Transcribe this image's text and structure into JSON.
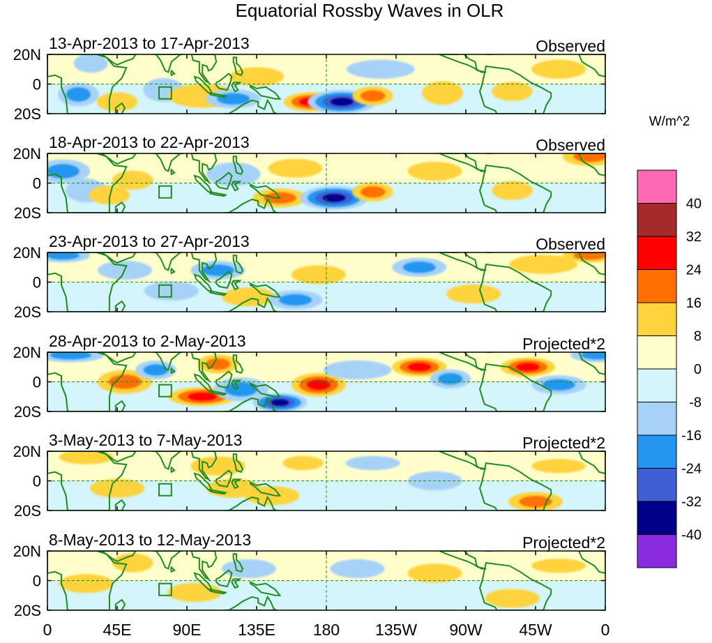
{
  "chart_data": {
    "type": "heatmap",
    "title": "Equatorial Rossby Waves in OLR",
    "units": "W/m^2",
    "x_ticks": [
      "0",
      "45E",
      "90E",
      "135E",
      "180",
      "135W",
      "90W",
      "45W",
      "0"
    ],
    "y_ticks": [
      "20N",
      "0",
      "20S"
    ],
    "colorbar": {
      "levels": [
        "40",
        "32",
        "24",
        "16",
        "8",
        "0",
        "-8",
        "-16",
        "-24",
        "-32",
        "-40"
      ],
      "colors": [
        "#ff69b4",
        "#a52a2a",
        "#ff0000",
        "#ff7000",
        "#ffd33d",
        "#ffffcc",
        "#d4f5fb",
        "#a7d2f8",
        "#2496f0",
        "#3f5fd5",
        "#00008b",
        "#8a2be2"
      ]
    },
    "land_color": "#1e8b1e",
    "panels": [
      {
        "period": "13-Apr-2013 to 17-Apr-2013",
        "label": "Observed",
        "blobs": [
          [
            20,
            -7,
            6,
            5,
            -16
          ],
          [
            28,
            14,
            5,
            4,
            -8
          ],
          [
            45,
            -12,
            6,
            4,
            12
          ],
          [
            75,
            -4,
            6,
            5,
            -8
          ],
          [
            100,
            -8,
            10,
            5,
            12
          ],
          [
            135,
            5,
            8,
            4,
            8
          ],
          [
            170,
            -12,
            8,
            4,
            24
          ],
          [
            190,
            -12,
            10,
            5,
            -36
          ],
          [
            210,
            -8,
            6,
            4,
            16
          ],
          [
            255,
            -6,
            6,
            5,
            8
          ],
          [
            300,
            -5,
            6,
            4,
            8
          ],
          [
            330,
            10,
            8,
            4,
            8
          ],
          [
            120,
            -10,
            8,
            4,
            -16
          ],
          [
            215,
            10,
            10,
            4,
            -8
          ]
        ]
      },
      {
        "period": "18-Apr-2013 to 22-Apr-2013",
        "label": "Observed",
        "blobs": [
          [
            10,
            8,
            8,
            5,
            -16
          ],
          [
            25,
            -5,
            6,
            5,
            -8
          ],
          [
            40,
            -8,
            6,
            4,
            12
          ],
          [
            55,
            2,
            6,
            4,
            8
          ],
          [
            120,
            6,
            8,
            5,
            -8
          ],
          [
            150,
            -10,
            8,
            4,
            16
          ],
          [
            185,
            -10,
            10,
            5,
            -32
          ],
          [
            210,
            -6,
            6,
            4,
            16
          ],
          [
            160,
            10,
            8,
            4,
            8
          ],
          [
            250,
            8,
            8,
            4,
            8
          ],
          [
            300,
            -5,
            6,
            4,
            8
          ],
          [
            350,
            18,
            8,
            4,
            16
          ]
        ]
      },
      {
        "period": "23-Apr-2013 to 27-Apr-2013",
        "label": "Observed",
        "blobs": [
          [
            10,
            18,
            8,
            3,
            -16
          ],
          [
            50,
            8,
            8,
            4,
            -8
          ],
          [
            80,
            -6,
            8,
            4,
            -8
          ],
          [
            110,
            8,
            8,
            4,
            -16
          ],
          [
            130,
            -10,
            8,
            4,
            12
          ],
          [
            160,
            -12,
            8,
            4,
            -16
          ],
          [
            175,
            5,
            8,
            4,
            8
          ],
          [
            240,
            10,
            8,
            4,
            -16
          ],
          [
            275,
            -8,
            8,
            4,
            12
          ],
          [
            320,
            12,
            10,
            4,
            12
          ],
          [
            350,
            18,
            8,
            3,
            16
          ]
        ]
      },
      {
        "period": "28-Apr-2013 to 2-May-2013",
        "label": "Projected*2",
        "blobs": [
          [
            15,
            18,
            10,
            3,
            -16
          ],
          [
            50,
            0,
            8,
            5,
            16
          ],
          [
            70,
            8,
            6,
            4,
            -16
          ],
          [
            110,
            12,
            6,
            4,
            16
          ],
          [
            100,
            -10,
            10,
            4,
            24
          ],
          [
            125,
            -5,
            8,
            5,
            -16
          ],
          [
            150,
            -14,
            8,
            4,
            -32
          ],
          [
            175,
            -2,
            8,
            5,
            24
          ],
          [
            200,
            8,
            10,
            4,
            -8
          ],
          [
            240,
            10,
            8,
            4,
            24
          ],
          [
            260,
            2,
            6,
            4,
            -16
          ],
          [
            310,
            10,
            8,
            4,
            24
          ],
          [
            330,
            -2,
            8,
            4,
            -16
          ],
          [
            355,
            18,
            8,
            3,
            -16
          ]
        ]
      },
      {
        "period": "3-May-2013 to 7-May-2013",
        "label": "Projected*2",
        "blobs": [
          [
            25,
            16,
            8,
            3,
            8
          ],
          [
            45,
            -5,
            8,
            4,
            8
          ],
          [
            110,
            10,
            8,
            4,
            8
          ],
          [
            120,
            -5,
            8,
            4,
            8
          ],
          [
            145,
            -10,
            8,
            4,
            8
          ],
          [
            165,
            12,
            6,
            3,
            8
          ],
          [
            210,
            12,
            8,
            3,
            -8
          ],
          [
            250,
            0,
            8,
            4,
            -8
          ],
          [
            315,
            -14,
            8,
            4,
            16
          ],
          [
            330,
            10,
            8,
            3,
            8
          ]
        ]
      },
      {
        "period": "8-May-2013 to 12-May-2013",
        "label": "Projected*2",
        "blobs": [
          [
            25,
            -2,
            8,
            4,
            8
          ],
          [
            55,
            12,
            6,
            4,
            8
          ],
          [
            95,
            -8,
            8,
            4,
            8
          ],
          [
            130,
            8,
            8,
            4,
            -8
          ],
          [
            200,
            8,
            8,
            4,
            -8
          ],
          [
            250,
            5,
            8,
            4,
            8
          ],
          [
            300,
            -12,
            8,
            4,
            8
          ],
          [
            330,
            10,
            8,
            3,
            8
          ]
        ]
      }
    ]
  }
}
